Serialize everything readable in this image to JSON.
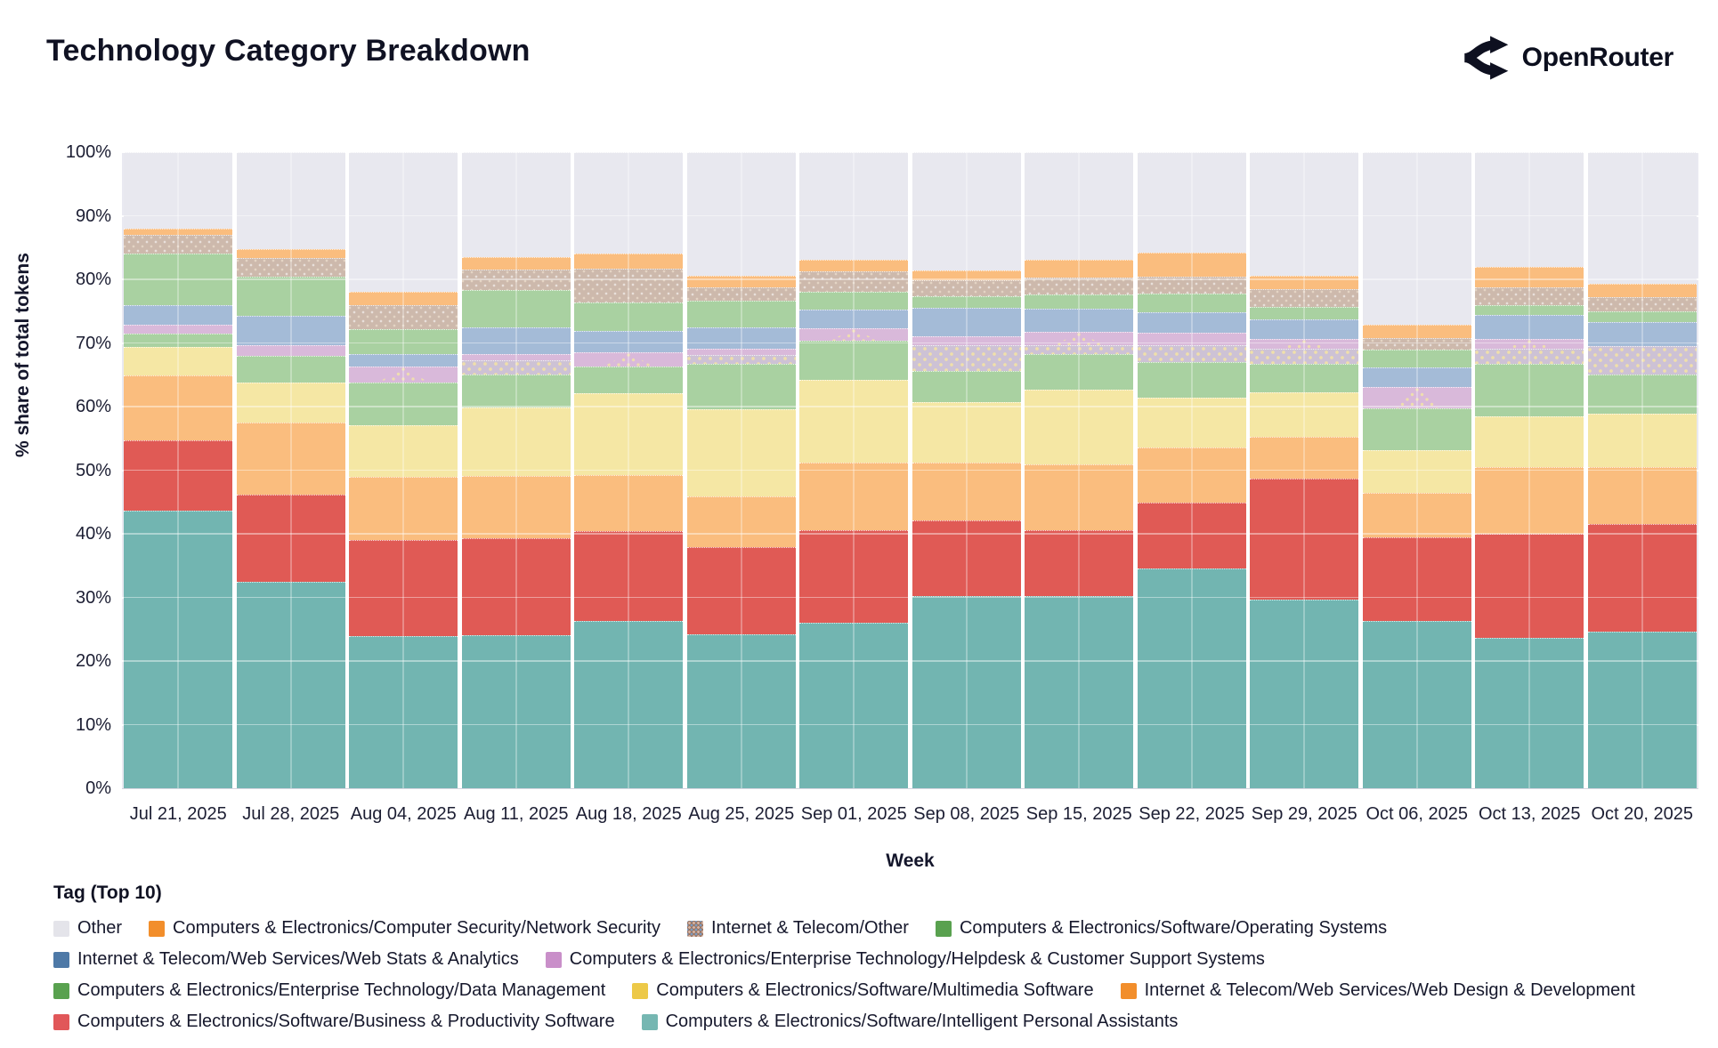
{
  "header": {
    "title": "Technology Category Breakdown",
    "brand": "OpenRouter"
  },
  "axes": {
    "x_label": "Week",
    "y_label": "% share of total tokens"
  },
  "legend": {
    "title": "Tag (Top 10)"
  },
  "colors": {
    "plot_background": "#e9e9f1",
    "bar_gap": "#ffffff",
    "text_dark": "#14162b"
  },
  "chart_data": {
    "type": "bar",
    "stacked": true,
    "normalized": "percent",
    "title": "Technology Category Breakdown",
    "xlabel": "Week",
    "ylabel": "% share of total tokens",
    "ylim": [
      0,
      100
    ],
    "grid": true,
    "legend_position": "bottom",
    "ytick_labels": [
      "0%",
      "10%",
      "20%",
      "30%",
      "40%",
      "50%",
      "60%",
      "70%",
      "80%",
      "90%",
      "100%"
    ],
    "categories": [
      "Jul 21, 2025",
      "Jul 28, 2025",
      "Aug 04, 2025",
      "Aug 11, 2025",
      "Aug 18, 2025",
      "Aug 25, 2025",
      "Sep 01, 2025",
      "Sep 08, 2025",
      "Sep 15, 2025",
      "Sep 22, 2025",
      "Sep 29, 2025",
      "Oct 06, 2025",
      "Oct 13, 2025",
      "Oct 20, 2025"
    ],
    "legend_order": [
      "other",
      "ns",
      "ito",
      "os",
      "wsa",
      "hcs",
      "dm",
      "mms",
      "wdd",
      "bps",
      "ipa"
    ],
    "legend_rows": [
      [
        "other",
        "ns",
        "ito",
        "os"
      ],
      [
        "wsa",
        "hcs"
      ],
      [
        "dm",
        "mms",
        "wdd"
      ],
      [
        "bps",
        "ipa"
      ]
    ],
    "hcs_triangle_weeks": [
      2,
      4,
      6,
      8,
      10,
      11,
      12
    ],
    "series": [
      {
        "id": "ipa",
        "label": "Computers & Electronics/Software/Intelligent Personal Assistants",
        "legend_color": "#76b7b2",
        "bar_color": "#72b5b1",
        "pattern": "none",
        "values": [
          43.7,
          32.5,
          23.9,
          24.0,
          26.3,
          24.2,
          26.0,
          30.2,
          30.2,
          34.6,
          29.7,
          26.3,
          23.7,
          24.6
        ]
      },
      {
        "id": "bps",
        "label": "Computers & Electronics/Software/Business & Productivity Software",
        "legend_color": "#e15759",
        "bar_color": "#e05a55",
        "pattern": "none",
        "values": [
          11.0,
          13.7,
          15.1,
          15.3,
          14.1,
          13.7,
          14.5,
          11.9,
          10.3,
          10.3,
          19.0,
          13.2,
          16.3,
          17.0
        ]
      },
      {
        "id": "wdd",
        "label": "Internet & Telecom/Web Services/Web Design & Development",
        "legend_color": "#f28e2b",
        "bar_color": "#fabd7e",
        "pattern": "none",
        "values": [
          10.2,
          11.3,
          10.0,
          9.8,
          8.8,
          8.0,
          10.7,
          9.1,
          10.4,
          8.6,
          6.6,
          7.0,
          10.5,
          8.9
        ]
      },
      {
        "id": "mms",
        "label": "Computers & Electronics/Software/Multimedia Software",
        "legend_color": "#edc948",
        "bar_color": "#f5e7a4",
        "pattern": "none",
        "values": [
          4.5,
          6.3,
          8.1,
          10.8,
          12.9,
          13.7,
          13.0,
          9.5,
          11.8,
          7.9,
          7.0,
          6.7,
          7.9,
          8.4
        ]
      },
      {
        "id": "dm",
        "label": "Computers & Electronics/Enterprise Technology/Data Management",
        "legend_color": "#59a14f",
        "bar_color": "#a9d1a1",
        "pattern": "none",
        "values": [
          2.1,
          4.2,
          6.7,
          5.2,
          4.2,
          7.1,
          6.1,
          4.9,
          5.5,
          5.6,
          4.4,
          6.5,
          8.3,
          6.1
        ]
      },
      {
        "id": "hcs_dotted",
        "label": "Helpdesk & Customer Support Systems (dotted pattern portion)",
        "legend_color": null,
        "bar_color": "#cdc2d5",
        "pattern": "dots-lavender",
        "values": [
          0,
          0,
          0,
          2.2,
          0,
          1.4,
          0,
          4.1,
          1.4,
          2.6,
          2.4,
          0,
          2.4,
          4.5
        ]
      },
      {
        "id": "hcs",
        "label": "Computers & Electronics/Enterprise Technology/Helpdesk & Customer Support Systems",
        "legend_color": "#c98fc9",
        "bar_color": "#d9b9da",
        "pattern": "none",
        "values": [
          1.4,
          1.7,
          2.5,
          0.9,
          2.2,
          1.0,
          2.0,
          1.3,
          2.2,
          2.0,
          1.5,
          3.4,
          1.5,
          0
        ]
      },
      {
        "id": "wsa",
        "label": "Internet & Telecom/Web Services/Web Stats & Analytics",
        "legend_color": "#4e79a7",
        "bar_color": "#a4bbd7",
        "pattern": "none",
        "values": [
          3.0,
          4.6,
          1.9,
          4.2,
          3.4,
          3.3,
          3.0,
          4.5,
          3.6,
          3.2,
          3.1,
          3.0,
          3.8,
          3.8
        ]
      },
      {
        "id": "os",
        "label": "Computers & Electronics/Software/Operating Systems",
        "legend_color": "#59a14f",
        "bar_color": "#a9d1a1",
        "pattern": "none",
        "values": [
          8.2,
          6.1,
          4.0,
          5.9,
          4.5,
          4.2,
          2.8,
          1.8,
          2.2,
          3.0,
          2.0,
          2.8,
          1.6,
          1.6
        ]
      },
      {
        "id": "ito",
        "label": "Internet & Telecom/Other",
        "legend_color": "#9d7660",
        "bar_color": "#cdb9ac",
        "pattern": "dots-tan",
        "values": [
          2.9,
          2.9,
          3.8,
          3.3,
          5.3,
          2.1,
          3.2,
          2.6,
          2.7,
          2.6,
          2.7,
          1.9,
          2.8,
          2.3
        ]
      },
      {
        "id": "ns",
        "label": "Computers & Electronics/Computer Security/Network Security",
        "legend_color": "#f28e2b",
        "bar_color": "#fabd7e",
        "pattern": "none",
        "values": [
          1.0,
          1.4,
          2.0,
          1.9,
          2.3,
          1.9,
          1.8,
          1.5,
          2.8,
          3.8,
          2.1,
          2.0,
          3.2,
          2.1
        ]
      },
      {
        "id": "other",
        "label": "Other",
        "legend_color": "#e4e4ea",
        "bar_color": "#e8e8ef",
        "pattern": "none",
        "values": [
          12.0,
          15.3,
          22.0,
          16.5,
          16.0,
          19.4,
          16.9,
          18.6,
          16.9,
          15.8,
          19.5,
          27.2,
          18.0,
          20.7
        ]
      }
    ]
  }
}
